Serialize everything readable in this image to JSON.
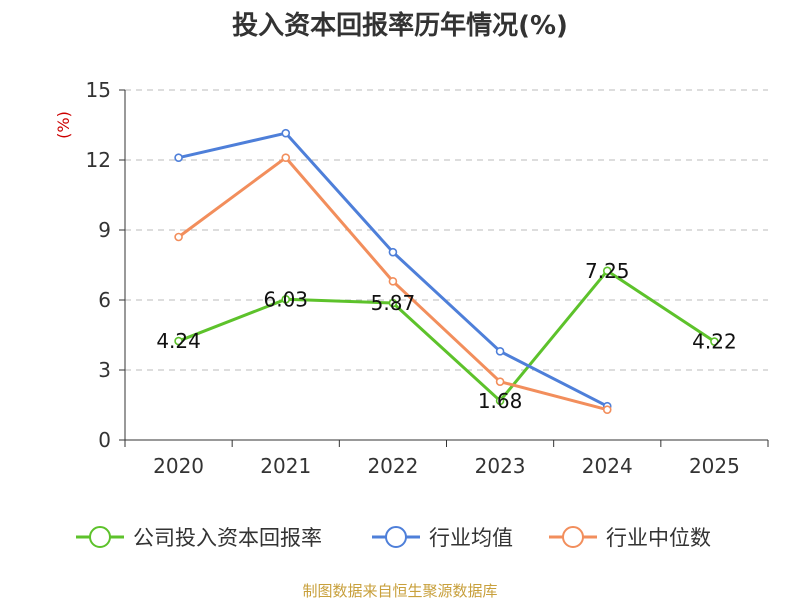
{
  "chart_data": {
    "type": "line",
    "title": "投入资本回报率历年情况(%)",
    "ylabel": "(%)",
    "xlabel": "",
    "categories": [
      "2020",
      "2021",
      "2022",
      "2023",
      "2024",
      "2025"
    ],
    "ylim": [
      0,
      15
    ],
    "yticks": [
      0,
      3,
      6,
      9,
      12,
      15
    ],
    "grid": true,
    "legend_position": "bottom",
    "series": [
      {
        "name": "公司投入资本回报率",
        "color": "#5dc22b",
        "values": [
          4.24,
          6.03,
          5.87,
          1.68,
          7.25,
          4.22
        ],
        "labels": [
          "4.24",
          "6.03",
          "5.87",
          "1.68",
          "7.25",
          "4.22"
        ]
      },
      {
        "name": "行业均值",
        "color": "#4e7fd9",
        "values": [
          12.1,
          13.15,
          8.05,
          3.8,
          1.45,
          null
        ]
      },
      {
        "name": "行业中位数",
        "color": "#f28e5c",
        "values": [
          8.7,
          12.1,
          6.8,
          2.5,
          1.3,
          null
        ]
      }
    ]
  },
  "source": {
    "text": "制图数据来自恒生聚源数据库",
    "color": "#c8a03c"
  },
  "colors": {
    "ylabel": "#cc0000",
    "grid": "#bbbbbb",
    "axis": "#333333"
  }
}
